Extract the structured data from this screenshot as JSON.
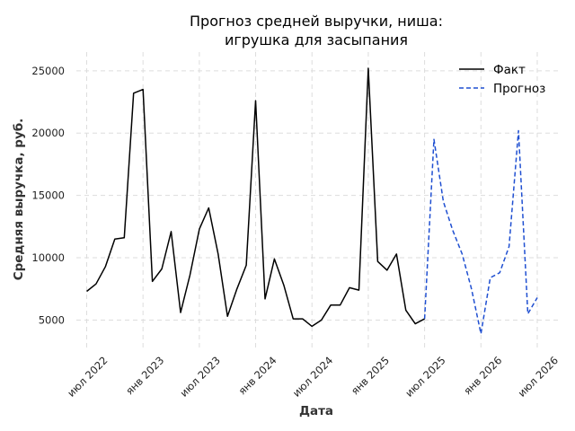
{
  "chart_data": {
    "type": "line",
    "title_line1": "Прогноз средней выручки, ниша:",
    "title_line2": "игрушка для засыпания",
    "xlabel": "Дата",
    "ylabel": "Средняя выручка, руб.",
    "ylim": [
      2800,
      26500
    ],
    "yticks": [
      5000,
      10000,
      15000,
      20000,
      25000
    ],
    "xticks": [
      {
        "label": "июл 2022",
        "date": "2022-07"
      },
      {
        "label": "янв 2023",
        "date": "2023-01"
      },
      {
        "label": "июл 2023",
        "date": "2023-07"
      },
      {
        "label": "янв 2024",
        "date": "2024-01"
      },
      {
        "label": "июл 2024",
        "date": "2024-07"
      },
      {
        "label": "янв 2025",
        "date": "2025-01"
      },
      {
        "label": "июл 2025",
        "date": "2025-07"
      },
      {
        "label": "янв 2026",
        "date": "2026-01"
      },
      {
        "label": "июл 2026",
        "date": "2026-07"
      }
    ],
    "legend_position": "top-right",
    "grid": true,
    "series": [
      {
        "name": "Факт",
        "color": "#000000",
        "style": "solid",
        "x": [
          "2022-07",
          "2022-08",
          "2022-09",
          "2022-10",
          "2022-11",
          "2022-12",
          "2023-01",
          "2023-02",
          "2023-03",
          "2023-04",
          "2023-05",
          "2023-06",
          "2023-07",
          "2023-08",
          "2023-09",
          "2023-10",
          "2023-11",
          "2023-12",
          "2024-01",
          "2024-02",
          "2024-03",
          "2024-04",
          "2024-05",
          "2024-06",
          "2024-07",
          "2024-08",
          "2024-09",
          "2024-10",
          "2024-11",
          "2024-12",
          "2025-01",
          "2025-02",
          "2025-03",
          "2025-04",
          "2025-05",
          "2025-06",
          "2025-07"
        ],
        "y": [
          7300,
          7900,
          9300,
          11500,
          11600,
          23200,
          23500,
          8100,
          9100,
          12100,
          5600,
          8600,
          12300,
          14000,
          10300,
          5300,
          7500,
          9400,
          22600,
          6700,
          9900,
          7800,
          5100,
          5100,
          4500,
          5000,
          6200,
          6200,
          7600,
          7400,
          25200,
          9700,
          9000,
          10300,
          5800,
          4700,
          5100
        ]
      },
      {
        "name": "Прогноз",
        "color": "#1f4fd1",
        "style": "dashed",
        "x": [
          "2025-07",
          "2025-08",
          "2025-09",
          "2025-10",
          "2025-11",
          "2025-12",
          "2026-01",
          "2026-02",
          "2026-03",
          "2026-04",
          "2026-05",
          "2026-06",
          "2026-07"
        ],
        "y": [
          5100,
          19500,
          14500,
          12200,
          10300,
          7500,
          3900,
          8400,
          8800,
          10900,
          20200,
          5500,
          6800
        ]
      }
    ]
  }
}
